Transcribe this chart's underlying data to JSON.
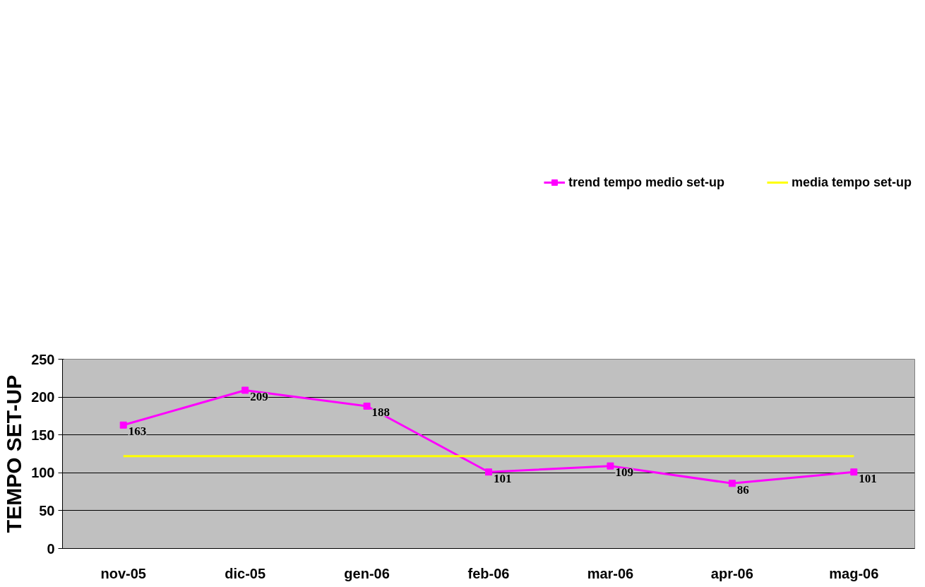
{
  "chart_data": {
    "type": "line",
    "ylabel": "TEMPO SET-UP",
    "categories": [
      "nov-05",
      "dic-05",
      "gen-06",
      "feb-06",
      "mar-06",
      "apr-06",
      "mag-06"
    ],
    "series": [
      {
        "name": "trend tempo medio set-up",
        "color": "#ff00ff",
        "marker": "square",
        "values": [
          163,
          209,
          188,
          101,
          109,
          86,
          101
        ],
        "value_labels": [
          "163",
          "209",
          "188",
          "101",
          "109",
          "86",
          "101"
        ]
      },
      {
        "name": "media tempo set-up",
        "color": "#ffff00",
        "marker": "none",
        "values": [
          122,
          122,
          122,
          122,
          122,
          122,
          122
        ]
      }
    ],
    "ylim": [
      0,
      250
    ],
    "yticks": [
      0,
      50,
      100,
      150,
      200,
      250
    ],
    "grid": "y",
    "legend": "top"
  }
}
